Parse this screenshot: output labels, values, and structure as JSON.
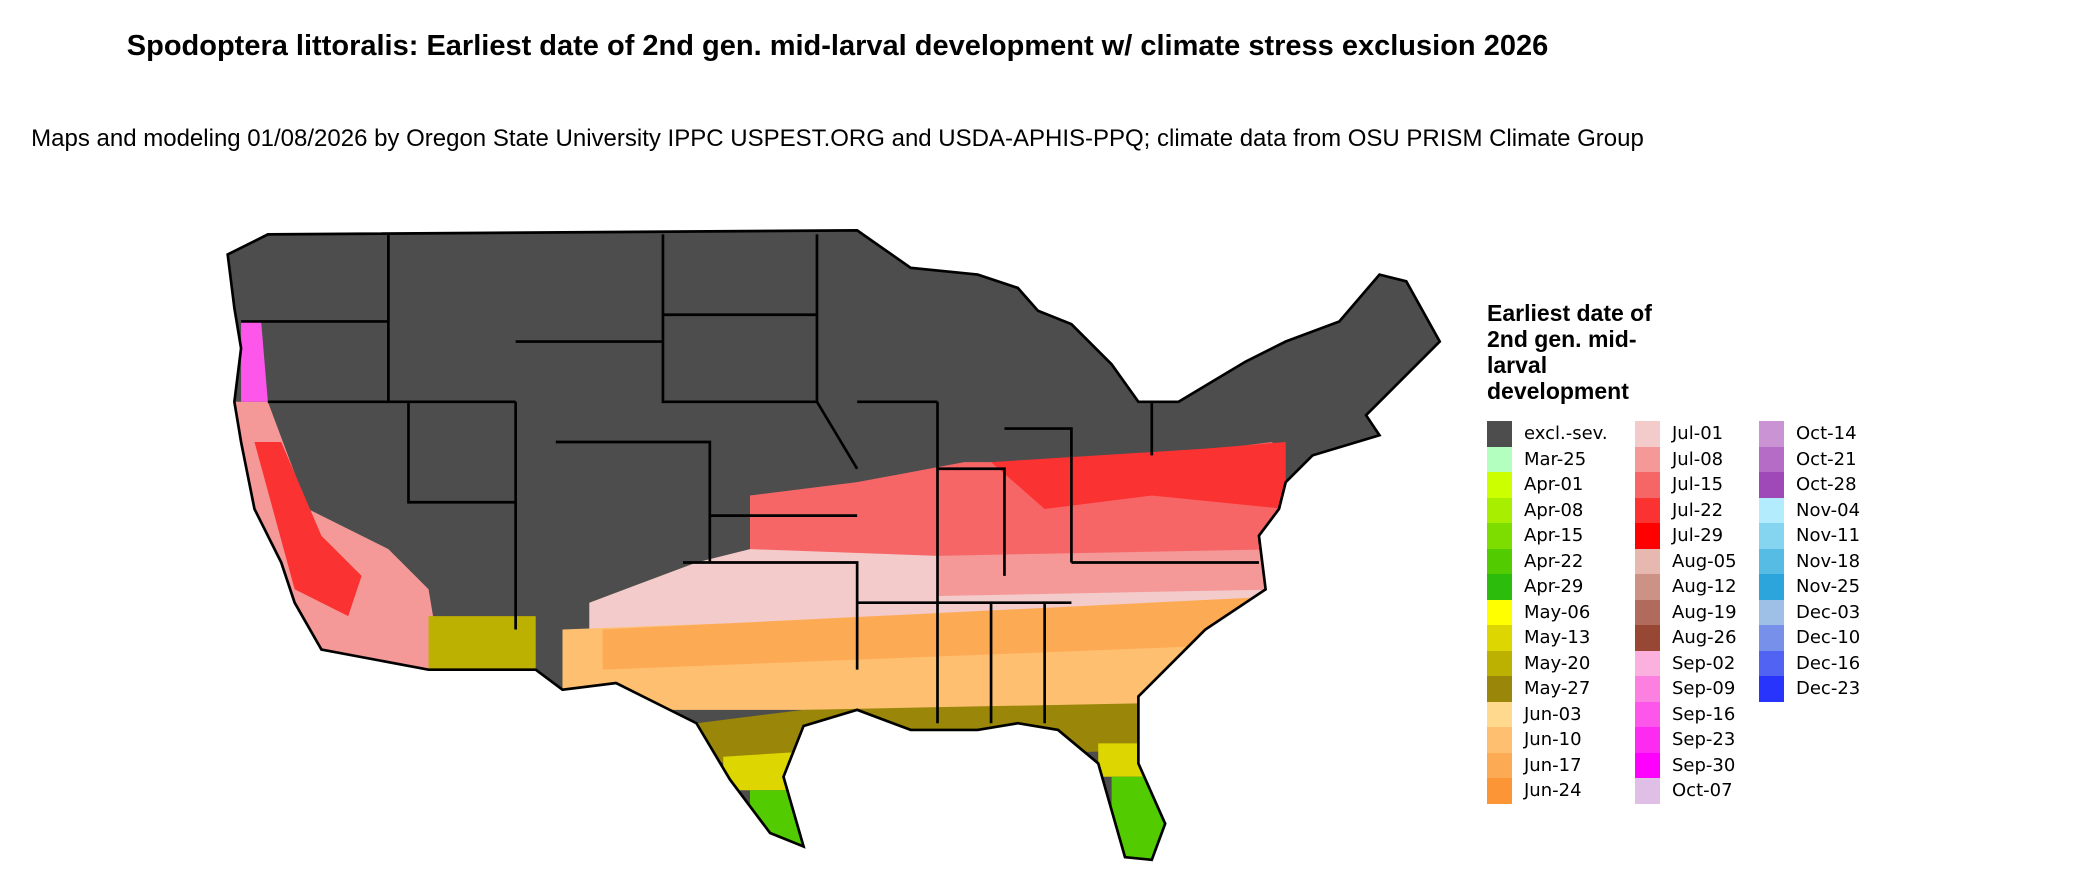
{
  "title": "Spodoptera littoralis: Earliest date of 2nd gen. mid-larval development w/ climate stress exclusion 2026",
  "subtitle": "Maps and modeling 01/08/2026 by Oregon State University IPPC USPEST.ORG and USDA-APHIS-PPQ; climate data from OSU PRISM Climate Group",
  "legend": {
    "title": "Earliest date of 2nd gen. mid-larval development",
    "columns": [
      [
        {
          "label": "excl.-sev.",
          "color": "#4d4d4d"
        },
        {
          "label": "Mar-25",
          "color": "#b3ffc0"
        },
        {
          "label": "Apr-01",
          "color": "#ccff00"
        },
        {
          "label": "Apr-08",
          "color": "#a8ee00"
        },
        {
          "label": "Apr-15",
          "color": "#7ddd00"
        },
        {
          "label": "Apr-22",
          "color": "#52cc00"
        },
        {
          "label": "Apr-29",
          "color": "#2cbd0c"
        },
        {
          "label": "May-06",
          "color": "#ffff00"
        },
        {
          "label": "May-13",
          "color": "#ddd600"
        },
        {
          "label": "May-20",
          "color": "#bcb000"
        },
        {
          "label": "May-27",
          "color": "#9a8709"
        },
        {
          "label": "Jun-03",
          "color": "#fed98e"
        },
        {
          "label": "Jun-10",
          "color": "#fec070"
        },
        {
          "label": "Jun-17",
          "color": "#fdaa55"
        },
        {
          "label": "Jun-24",
          "color": "#fc9535"
        }
      ],
      [
        {
          "label": "Jul-01",
          "color": "#f3cbcb"
        },
        {
          "label": "Jul-08",
          "color": "#f49898"
        },
        {
          "label": "Jul-15",
          "color": "#f76666"
        },
        {
          "label": "Jul-22",
          "color": "#fa3232"
        },
        {
          "label": "Jul-29",
          "color": "#ff0000"
        },
        {
          "label": "Aug-05",
          "color": "#e6b8af"
        },
        {
          "label": "Aug-12",
          "color": "#cb9285"
        },
        {
          "label": "Aug-19",
          "color": "#b06b5c"
        },
        {
          "label": "Aug-26",
          "color": "#984735"
        },
        {
          "label": "Sep-02",
          "color": "#fcb0dd"
        },
        {
          "label": "Sep-09",
          "color": "#fc80e0"
        },
        {
          "label": "Sep-16",
          "color": "#fc56ea"
        },
        {
          "label": "Sep-23",
          "color": "#fd2af2"
        },
        {
          "label": "Sep-30",
          "color": "#ff00ff"
        },
        {
          "label": "Oct-07",
          "color": "#dfbfe6"
        }
      ],
      [
        {
          "label": "Oct-14",
          "color": "#c993d4"
        },
        {
          "label": "Oct-21",
          "color": "#b56cc6"
        },
        {
          "label": "Oct-28",
          "color": "#9f48b7"
        },
        {
          "label": "Nov-04",
          "color": "#b3ecfc"
        },
        {
          "label": "Nov-11",
          "color": "#85d4f0"
        },
        {
          "label": "Nov-18",
          "color": "#56bce4"
        },
        {
          "label": "Nov-25",
          "color": "#2ba5dc"
        },
        {
          "label": "Dec-03",
          "color": "#9fc0e6"
        },
        {
          "label": "Dec-10",
          "color": "#7791ea"
        },
        {
          "label": "Dec-16",
          "color": "#5063f2"
        },
        {
          "label": "Dec-23",
          "color": "#2833fb"
        }
      ]
    ]
  }
}
